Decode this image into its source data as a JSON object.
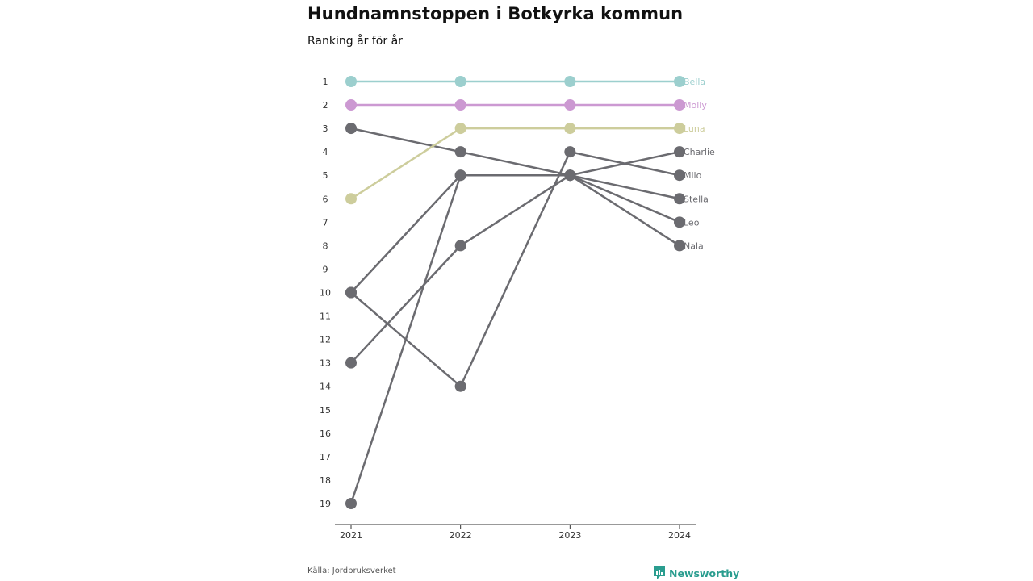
{
  "header": {
    "title": "Hundnamnstoppen i Botkyrka kommun",
    "subtitle": "Ranking år för år"
  },
  "footer": {
    "source": "Källa: Jordbruksverket",
    "brand": "Newsworthy",
    "brand_icon": "newsworthy-logo-icon"
  },
  "colors": {
    "bella": "#9ccfce",
    "molly": "#cc99d2",
    "luna": "#cdcd9c",
    "other": "#6b6b70",
    "axis": "#333333",
    "brand": "#2a9d8f"
  },
  "chart_data": {
    "type": "line",
    "x": [
      "2021",
      "2022",
      "2023",
      "2024"
    ],
    "y_ticks": [
      1,
      2,
      3,
      4,
      5,
      6,
      7,
      8,
      9,
      10,
      11,
      12,
      13,
      14,
      15,
      16,
      17,
      18,
      19
    ],
    "y_inverted": true,
    "ylim": [
      1,
      19
    ],
    "grid": false,
    "legend": "direct labels at line ends (right)",
    "series": [
      {
        "name": "Bella",
        "values": [
          1,
          1,
          1,
          1
        ],
        "color": "#9ccfce"
      },
      {
        "name": "Molly",
        "values": [
          2,
          2,
          2,
          2
        ],
        "color": "#cc99d2"
      },
      {
        "name": "Luna",
        "values": [
          6,
          3,
          3,
          3
        ],
        "color": "#cdcd9c"
      },
      {
        "name": "Charlie",
        "values": [
          19,
          5,
          5,
          4
        ],
        "color": "#6b6b70"
      },
      {
        "name": "Milo",
        "values": [
          10,
          14,
          4,
          5
        ],
        "color": "#6b6b70"
      },
      {
        "name": "Stella",
        "values": [
          3,
          4,
          5,
          6
        ],
        "color": "#6b6b70"
      },
      {
        "name": "Leo",
        "values": [
          10,
          5,
          5,
          7
        ],
        "color": "#6b6b70"
      },
      {
        "name": "Nala",
        "values": [
          13,
          8,
          5,
          8
        ],
        "color": "#6b6b70"
      }
    ]
  }
}
